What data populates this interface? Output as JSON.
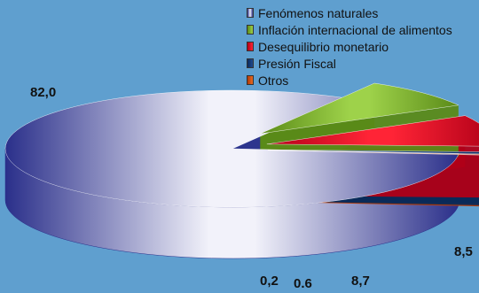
{
  "chart_data": {
    "type": "pie",
    "title": "",
    "legend_position": "top-right",
    "slices": [
      {
        "name": "Fenómenos naturales",
        "value": 82.0,
        "label": "82,0",
        "color": "#2a2f8a",
        "highlight": "#f2f2fa"
      },
      {
        "name": "Inflación internacional de alimentos",
        "value": 8.5,
        "label": "8,5",
        "color": "#5a8a18",
        "highlight": "#9ed24a"
      },
      {
        "name": "Desequilibrio monetario",
        "value": 8.7,
        "label": "8,7",
        "color": "#b00018",
        "highlight": "#ff2436"
      },
      {
        "name": "Presión Fiscal",
        "value": 0.6,
        "label": "0.6",
        "color": "#0a2a5a",
        "highlight": "#1f4a90"
      },
      {
        "name": "Otros",
        "value": 0.2,
        "label": "0,2",
        "color": "#b03a08",
        "highlight": "#e86a22"
      }
    ]
  }
}
